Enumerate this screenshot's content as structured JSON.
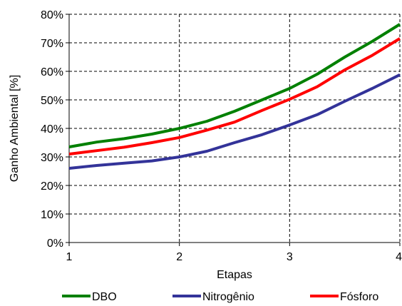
{
  "chart_data": {
    "type": "line",
    "xlabel": "Etapas",
    "ylabel": "Ganho Ambiental [%]",
    "x_ticks": [
      "1",
      "2",
      "3",
      "4"
    ],
    "y_ticks": [
      "0%",
      "10%",
      "20%",
      "30%",
      "40%",
      "50%",
      "60%",
      "70%",
      "80%"
    ],
    "xlim": [
      1,
      4
    ],
    "ylim": [
      0,
      80
    ],
    "y_unit": "%",
    "grid": "dashed",
    "legend_position": "bottom",
    "series": [
      {
        "name": "DBO",
        "color": "#008000",
        "x": [
          1,
          1.25,
          1.5,
          1.75,
          2,
          2.25,
          2.5,
          2.75,
          3,
          3.25,
          3.5,
          3.75,
          4
        ],
        "y": [
          33.5,
          35.2,
          36.4,
          38.0,
          40.0,
          42.5,
          46.0,
          50.0,
          54.0,
          59.0,
          65.0,
          70.5,
          76.5
        ]
      },
      {
        "name": "Nitrogênio",
        "color": "#333399",
        "x": [
          1,
          1.25,
          1.5,
          1.75,
          2,
          2.25,
          2.5,
          2.75,
          3,
          3.25,
          3.5,
          3.75,
          4
        ],
        "y": [
          26.0,
          27.0,
          27.8,
          28.6,
          30.0,
          32.0,
          35.0,
          37.8,
          41.2,
          44.8,
          49.5,
          54.0,
          58.8
        ]
      },
      {
        "name": "Fósforo",
        "color": "#ff0000",
        "x": [
          1,
          1.25,
          1.5,
          1.75,
          2,
          2.25,
          2.5,
          2.75,
          3,
          3.25,
          3.5,
          3.75,
          4
        ],
        "y": [
          31.0,
          32.2,
          33.4,
          35.0,
          36.8,
          39.4,
          42.2,
          46.3,
          50.2,
          54.6,
          60.5,
          65.6,
          71.5
        ]
      }
    ]
  }
}
